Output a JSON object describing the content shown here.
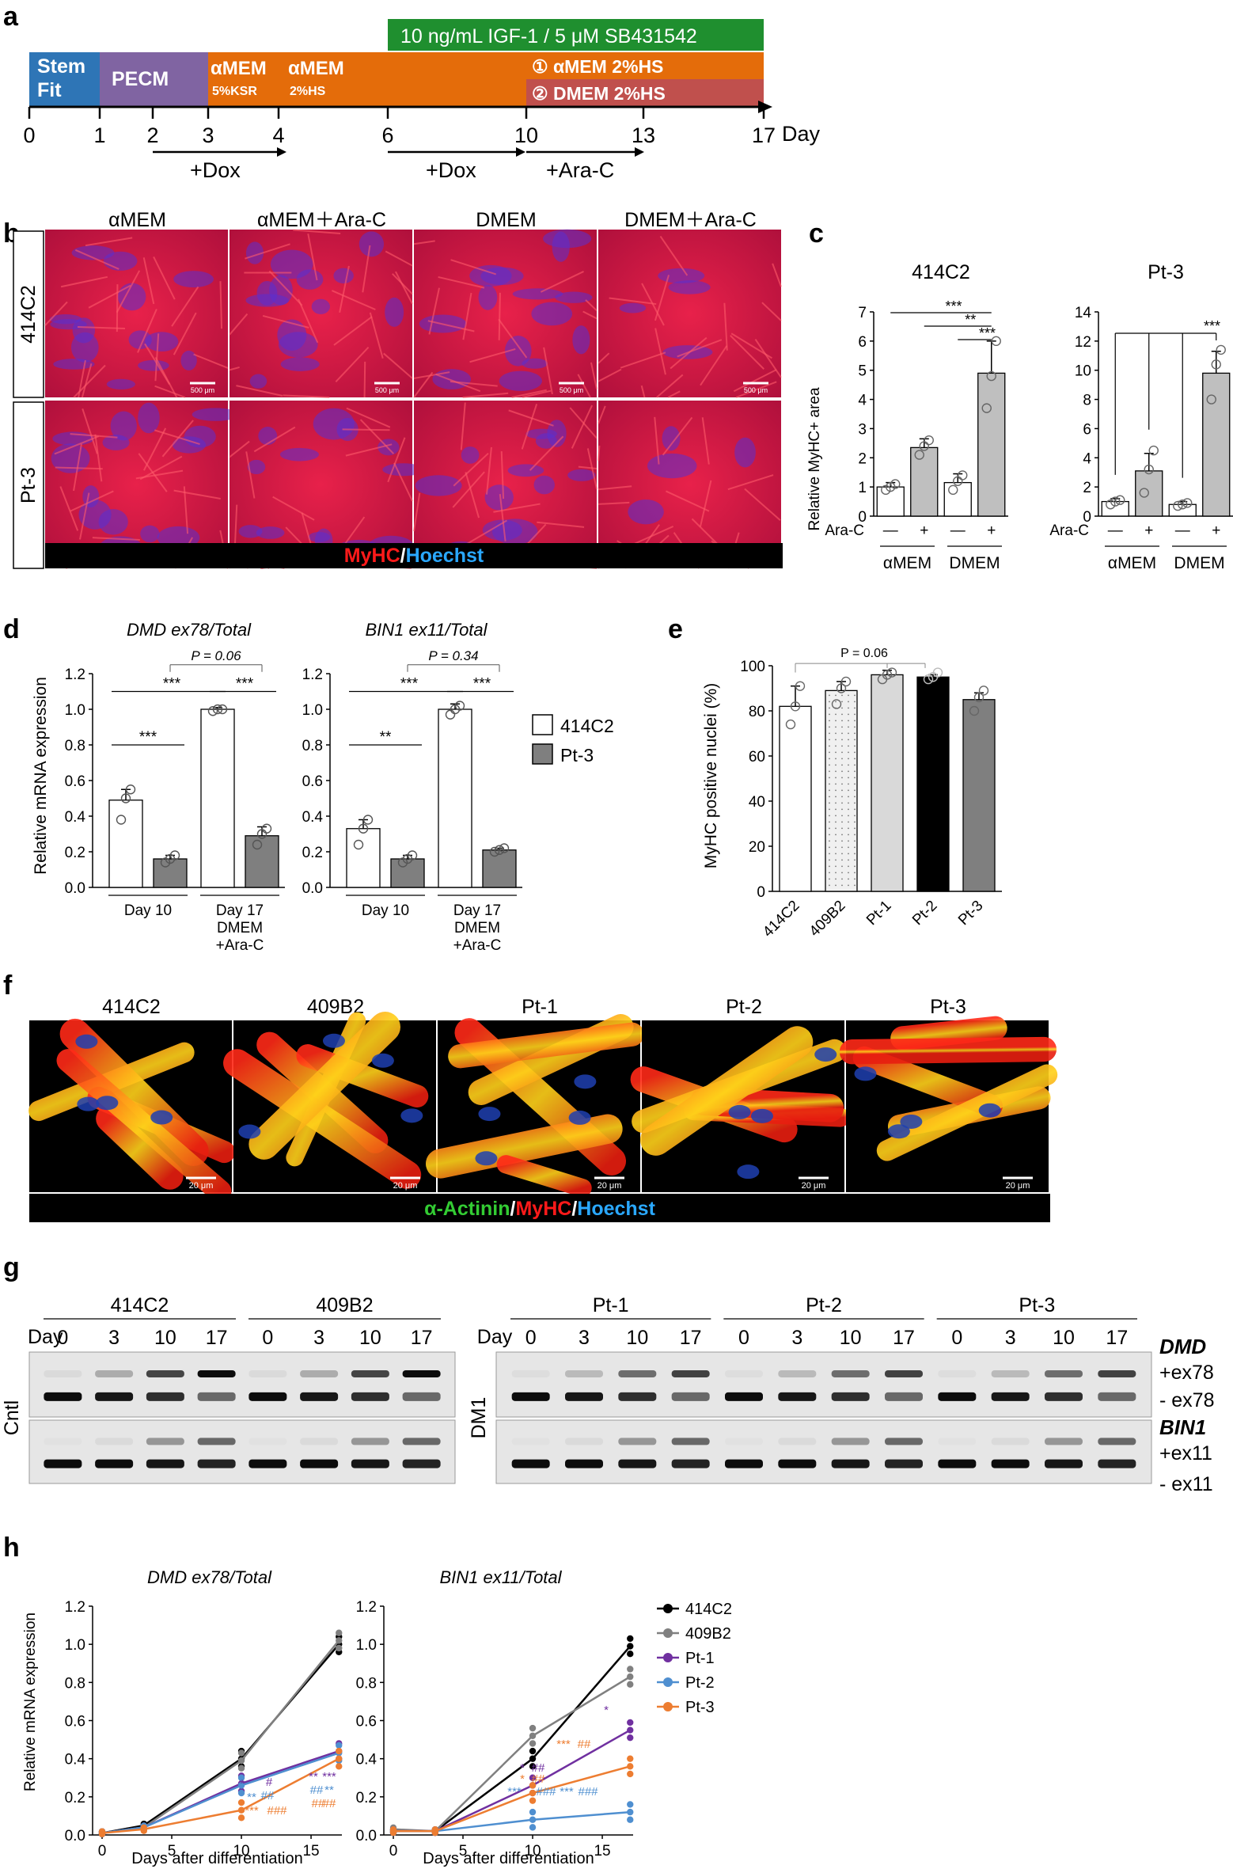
{
  "panel_labels": {
    "a": "a",
    "b": "b",
    "c": "c",
    "d": "d",
    "e": "e",
    "f": "f",
    "g": "g",
    "h": "h"
  },
  "panel_a": {
    "treatment": "10 ng/mL IGF-1 / 5 μM SB431542",
    "stages": [
      {
        "line1": "Stem",
        "line2": "Fit",
        "color": "#2e75b6"
      },
      {
        "line1": "PECM",
        "line2": "",
        "color": "#8064a2"
      },
      {
        "line1": "αMEM",
        "line2": "5%KSR",
        "color": "#e46c0a"
      },
      {
        "line1": "αMEM",
        "line2": "2%HS",
        "color": "#e46c0a"
      }
    ],
    "branch1": "① αMEM 2%HS",
    "branch2": "② DMEM 2%HS",
    "branch1_color": "#e46c0a",
    "branch2_color": "#c0504d",
    "treatment_color": "#1f8f2f",
    "ticks": [
      "0",
      "1",
      "2",
      "3",
      "4",
      "6",
      "10",
      "13",
      "17"
    ],
    "axis_unit": "Day",
    "arrows": [
      "+Dox",
      "+Dox",
      "+Ara-C"
    ]
  },
  "panel_b": {
    "columns": [
      "αMEM",
      "αMEM＋Ara-C",
      "DMEM",
      "DMEM＋Ara-C"
    ],
    "rows": [
      "414C2",
      "Pt-3"
    ],
    "scale": "500 μm",
    "stain": {
      "red": "MyHC",
      "sep": "/",
      "blue": "Hoechst"
    }
  },
  "panel_c": {
    "ylabel": "Relative MyHC+ area",
    "arac_label": "Ara-C",
    "signs": [
      "—",
      "+",
      "—",
      "+"
    ],
    "groups": [
      "αMEM",
      "DMEM"
    ],
    "sig": [
      "***",
      "**",
      "***",
      "***"
    ],
    "charts": [
      {
        "title": "414C2",
        "ticks": [
          "0",
          "1",
          "2",
          "3",
          "4",
          "5",
          "6",
          "7"
        ]
      },
      {
        "title": "Pt-3",
        "ticks": [
          "0",
          "2",
          "4",
          "6",
          "8",
          "10",
          "12",
          "14"
        ]
      }
    ]
  },
  "panel_d": {
    "ylabel": "Relative mRNA expression",
    "ticks": [
      "0.0",
      "0.2",
      "0.4",
      "0.6",
      "0.8",
      "1.0",
      "1.2"
    ],
    "titles": [
      "DMD ex78/Total",
      "BIN1 ex11/Total"
    ],
    "pvals": [
      "P = 0.06",
      "P = 0.34"
    ],
    "sig": [
      "***",
      "***",
      "***",
      "**",
      "***",
      "***"
    ],
    "xcat1": "Day 10",
    "xcat2": [
      "Day 17",
      "DMEM",
      "+Ara-C"
    ],
    "legend": [
      "414C2",
      "Pt-3"
    ]
  },
  "panel_e": {
    "ylabel": "MyHC positive nuclei (%)",
    "ticks": [
      "0",
      "20",
      "40",
      "60",
      "80",
      "100"
    ],
    "pval": "P = 0.06",
    "categories": [
      "414C2",
      "409B2",
      "Pt-1",
      "Pt-2",
      "Pt-3"
    ]
  },
  "panel_f": {
    "titles": [
      "414C2",
      "409B2",
      "Pt-1",
      "Pt-2",
      "Pt-3"
    ],
    "scale": "20 μm",
    "stain": {
      "green": "α-Actinin",
      "sep1": "/",
      "red": "MyHC",
      "sep2": "/",
      "blue": "Hoechst"
    }
  },
  "panel_g": {
    "day_label": "Day",
    "days": [
      "0",
      "3",
      "10",
      "17"
    ],
    "left_lines": [
      "414C2",
      "409B2"
    ],
    "right_lines": [
      "Pt-1",
      "Pt-2",
      "Pt-3"
    ],
    "left_group": "Cntl",
    "right_group": "DM1",
    "gene1": "DMD",
    "gene2": "BIN1",
    "bands": [
      "+ex78",
      "- ex78",
      "+ex11",
      "- ex11"
    ]
  },
  "panel_h": {
    "ylabel": "Relative mRNA expression",
    "xlabel": "Days after differentiation",
    "titles": [
      "DMD ex78/Total",
      "BIN1 ex11/Total"
    ],
    "ticks": [
      "0.0",
      "0.2",
      "0.4",
      "0.6",
      "0.8",
      "1.0",
      "1.2"
    ],
    "xticks": [
      "0",
      "5",
      "10",
      "15"
    ],
    "legend": [
      "414C2",
      "409B2",
      "Pt-1",
      "Pt-2",
      "Pt-3"
    ],
    "sig": [
      "*",
      "**",
      "***",
      "#",
      "##",
      "###",
      "**",
      "##",
      "##",
      "***",
      "**",
      "##",
      "###",
      "##",
      "*",
      "***",
      "*",
      "###",
      "###",
      "##",
      "###",
      "##",
      "***",
      "***",
      "###"
    ]
  },
  "chart_data": [
    {
      "type": "bar",
      "panel": "c",
      "title": "414C2",
      "ylabel": "Relative MyHC+ area",
      "ylim": [
        0,
        7
      ],
      "categories": [
        "αMEM −",
        "αMEM +",
        "DMEM −",
        "DMEM +"
      ],
      "values": [
        1.0,
        2.35,
        1.15,
        4.9
      ],
      "errors": [
        0.15,
        0.3,
        0.3,
        1.1
      ],
      "points": [
        [
          0.9,
          1.0,
          1.1
        ],
        [
          2.1,
          2.4,
          2.6
        ],
        [
          0.9,
          1.2,
          1.4
        ],
        [
          3.7,
          4.8,
          6.0
        ]
      ],
      "colors": [
        "#ffffff",
        "#bfbfbf",
        "#ffffff",
        "#bfbfbf"
      ]
    },
    {
      "type": "bar",
      "panel": "c",
      "title": "Pt-3",
      "ylabel": "Relative MyHC+ area",
      "ylim": [
        0,
        14
      ],
      "categories": [
        "αMEM −",
        "αMEM +",
        "DMEM −",
        "DMEM +"
      ],
      "values": [
        1.0,
        3.1,
        0.8,
        9.8
      ],
      "errors": [
        0.2,
        1.2,
        0.2,
        1.5
      ],
      "points": [
        [
          0.8,
          1.0,
          1.1
        ],
        [
          1.6,
          3.2,
          4.5
        ],
        [
          0.7,
          0.8,
          0.9
        ],
        [
          8.0,
          10.4,
          11.4
        ]
      ],
      "colors": [
        "#ffffff",
        "#bfbfbf",
        "#ffffff",
        "#bfbfbf"
      ]
    },
    {
      "type": "bar",
      "panel": "d",
      "title": "DMD ex78/Total",
      "ylabel": "Relative mRNA expression",
      "ylim": [
        0,
        1.2
      ],
      "categories": [
        "Day 10",
        "Day 17 DMEM +Ara-C"
      ],
      "series": [
        {
          "name": "414C2",
          "values": [
            0.49,
            1.0
          ],
          "errors": [
            0.06,
            0.01
          ]
        },
        {
          "name": "Pt-3",
          "values": [
            0.16,
            0.29
          ],
          "errors": [
            0.02,
            0.05
          ]
        }
      ],
      "points": [
        [
          0.38,
          0.5,
          0.55
        ],
        [
          0.14,
          0.16,
          0.18
        ],
        [
          0.99,
          1.0,
          1.0
        ],
        [
          0.24,
          0.3,
          0.33
        ]
      ]
    },
    {
      "type": "bar",
      "panel": "d",
      "title": "BIN1 ex11/Total",
      "ylabel": "Relative mRNA expression",
      "ylim": [
        0,
        1.2
      ],
      "categories": [
        "Day 10",
        "Day 17 DMEM +Ara-C"
      ],
      "series": [
        {
          "name": "414C2",
          "values": [
            0.33,
            1.0
          ],
          "errors": [
            0.05,
            0.03
          ]
        },
        {
          "name": "Pt-3",
          "values": [
            0.16,
            0.21
          ],
          "errors": [
            0.02,
            0.01
          ]
        }
      ],
      "points": [
        [
          0.24,
          0.33,
          0.38
        ],
        [
          0.14,
          0.16,
          0.18
        ],
        [
          0.97,
          1.0,
          1.02
        ],
        [
          0.2,
          0.21,
          0.22
        ]
      ]
    },
    {
      "type": "bar",
      "panel": "e",
      "ylabel": "MyHC positive nuclei (%)",
      "ylim": [
        0,
        100
      ],
      "categories": [
        "414C2",
        "409B2",
        "Pt-1",
        "Pt-2",
        "Pt-3"
      ],
      "values": [
        82,
        89,
        96,
        95,
        85
      ],
      "errors": [
        9,
        4,
        2,
        1,
        3
      ],
      "points": [
        [
          74,
          82,
          91
        ],
        [
          83,
          90,
          93
        ],
        [
          94,
          96,
          97
        ],
        [
          94,
          95,
          97
        ],
        [
          80,
          86,
          89
        ]
      ],
      "colors": [
        "#ffffff",
        "#f0f0f0",
        "#d9d9d9",
        "#000000",
        "#7f7f7f"
      ]
    },
    {
      "type": "line",
      "panel": "h",
      "title": "DMD ex78/Total",
      "xlabel": "Days after differentiation",
      "ylabel": "Relative mRNA expression",
      "xlim": [
        0,
        17
      ],
      "ylim": [
        0,
        1.2
      ],
      "x": [
        0,
        3,
        10,
        17
      ],
      "series": [
        {
          "name": "414C2",
          "color": "#000000",
          "values": [
            0.01,
            0.05,
            0.4,
            1.0
          ]
        },
        {
          "name": "409B2",
          "color": "#808080",
          "values": [
            0.01,
            0.04,
            0.39,
            1.02
          ]
        },
        {
          "name": "Pt-1",
          "color": "#7030a0",
          "values": [
            0.01,
            0.04,
            0.27,
            0.44
          ]
        },
        {
          "name": "Pt-2",
          "color": "#4f8fd0",
          "values": [
            0.01,
            0.04,
            0.26,
            0.43
          ]
        },
        {
          "name": "Pt-3",
          "color": "#ed7d31",
          "values": [
            0.01,
            0.03,
            0.13,
            0.4
          ]
        }
      ]
    },
    {
      "type": "line",
      "panel": "h",
      "title": "BIN1 ex11/Total",
      "xlabel": "Days after differentiation",
      "ylabel": "Relative mRNA expression",
      "xlim": [
        0,
        17
      ],
      "ylim": [
        0,
        1.2
      ],
      "x": [
        0,
        3,
        10,
        17
      ],
      "series": [
        {
          "name": "414C2",
          "color": "#000000",
          "values": [
            0.02,
            0.02,
            0.4,
            0.99
          ]
        },
        {
          "name": "409B2",
          "color": "#808080",
          "values": [
            0.03,
            0.02,
            0.52,
            0.83
          ]
        },
        {
          "name": "Pt-1",
          "color": "#7030a0",
          "values": [
            0.02,
            0.02,
            0.26,
            0.55
          ]
        },
        {
          "name": "Pt-2",
          "color": "#4f8fd0",
          "values": [
            0.02,
            0.02,
            0.08,
            0.12
          ]
        },
        {
          "name": "Pt-3",
          "color": "#ed7d31",
          "values": [
            0.02,
            0.02,
            0.22,
            0.36
          ]
        }
      ]
    }
  ]
}
